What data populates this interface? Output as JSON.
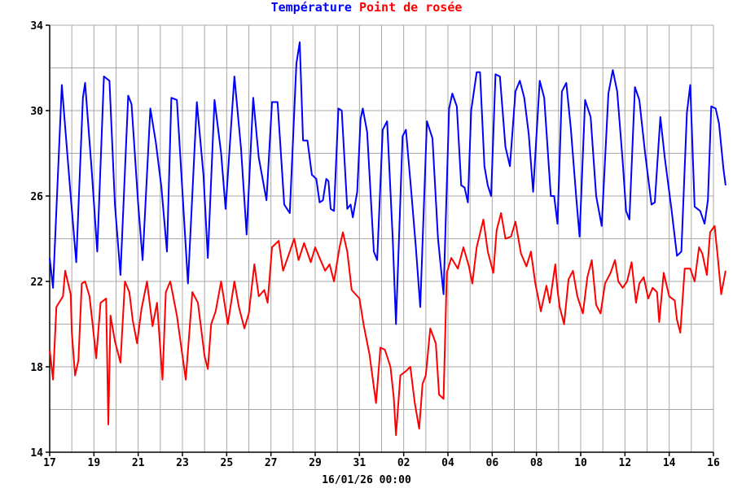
{
  "chart_data": {
    "type": "line",
    "title_parts": [
      {
        "text": "Température",
        "color": "#0000ff"
      },
      {
        "text": "Point de rosée",
        "color": "#ff0000"
      }
    ],
    "footer": "16/01/26 00:00",
    "x_tick_labels": [
      "17",
      "19",
      "21",
      "23",
      "25",
      "27",
      "29",
      "31",
      "02",
      "04",
      "06",
      "08",
      "10",
      "12",
      "14",
      "16"
    ],
    "x_range": [
      0,
      30
    ],
    "ylim": [
      14,
      34
    ],
    "y_ticks": [
      14,
      18,
      22,
      26,
      30,
      34
    ],
    "grid": true,
    "series": [
      {
        "name": "Température",
        "color": "#0000ff",
        "points": [
          [
            0,
            23.1
          ],
          [
            0.15,
            21.7
          ],
          [
            0.55,
            31.2
          ],
          [
            0.95,
            26.0
          ],
          [
            1.2,
            22.9
          ],
          [
            1.5,
            30.6
          ],
          [
            1.6,
            31.3
          ],
          [
            1.9,
            27.2
          ],
          [
            2.15,
            23.4
          ],
          [
            2.45,
            31.6
          ],
          [
            2.7,
            31.4
          ],
          [
            2.95,
            25.6
          ],
          [
            3.2,
            22.3
          ],
          [
            3.55,
            30.7
          ],
          [
            3.7,
            30.3
          ],
          [
            4.0,
            25.6
          ],
          [
            4.2,
            23.0
          ],
          [
            4.55,
            30.1
          ],
          [
            4.8,
            28.5
          ],
          [
            5.05,
            26.4
          ],
          [
            5.3,
            23.4
          ],
          [
            5.5,
            30.6
          ],
          [
            5.75,
            30.5
          ],
          [
            6.0,
            26.2
          ],
          [
            6.25,
            21.9
          ],
          [
            6.65,
            30.4
          ],
          [
            6.95,
            27.0
          ],
          [
            7.15,
            23.1
          ],
          [
            7.45,
            30.5
          ],
          [
            7.75,
            28.0
          ],
          [
            7.95,
            25.4
          ],
          [
            8.35,
            31.6
          ],
          [
            8.65,
            28.2
          ],
          [
            8.9,
            24.2
          ],
          [
            9.2,
            30.6
          ],
          [
            9.45,
            27.8
          ],
          [
            9.8,
            25.8
          ],
          [
            10.05,
            30.4
          ],
          [
            10.3,
            30.4
          ],
          [
            10.6,
            25.6
          ],
          [
            10.85,
            25.2
          ],
          [
            11.15,
            32.2
          ],
          [
            11.3,
            33.2
          ],
          [
            11.45,
            28.6
          ],
          [
            11.65,
            28.6
          ],
          [
            11.85,
            27.0
          ],
          [
            12.05,
            26.8
          ],
          [
            12.2,
            25.7
          ],
          [
            12.35,
            25.8
          ],
          [
            12.5,
            26.8
          ],
          [
            12.6,
            26.7
          ],
          [
            12.7,
            25.4
          ],
          [
            12.85,
            25.3
          ],
          [
            13.05,
            30.1
          ],
          [
            13.2,
            30.0
          ],
          [
            13.45,
            25.4
          ],
          [
            13.6,
            25.6
          ],
          [
            13.7,
            25.0
          ],
          [
            13.9,
            26.2
          ],
          [
            14.05,
            29.6
          ],
          [
            14.15,
            30.1
          ],
          [
            14.35,
            29.0
          ],
          [
            14.65,
            23.4
          ],
          [
            14.8,
            23.0
          ],
          [
            15.05,
            29.1
          ],
          [
            15.25,
            29.5
          ],
          [
            15.5,
            24.1
          ],
          [
            15.65,
            20.0
          ],
          [
            15.95,
            28.8
          ],
          [
            16.1,
            29.1
          ],
          [
            16.35,
            26.1
          ],
          [
            16.55,
            23.6
          ],
          [
            16.75,
            20.8
          ],
          [
            17.05,
            29.5
          ],
          [
            17.3,
            28.7
          ],
          [
            17.55,
            24.0
          ],
          [
            17.8,
            21.4
          ],
          [
            18.05,
            30.1
          ],
          [
            18.2,
            30.8
          ],
          [
            18.4,
            30.2
          ],
          [
            18.6,
            26.5
          ],
          [
            18.75,
            26.4
          ],
          [
            18.9,
            25.7
          ],
          [
            19.05,
            30.0
          ],
          [
            19.3,
            31.8
          ],
          [
            19.45,
            31.8
          ],
          [
            19.65,
            27.4
          ],
          [
            19.8,
            26.5
          ],
          [
            19.95,
            26.0
          ],
          [
            20.15,
            31.7
          ],
          [
            20.35,
            31.6
          ],
          [
            20.6,
            28.3
          ],
          [
            20.8,
            27.4
          ],
          [
            21.05,
            30.9
          ],
          [
            21.25,
            31.4
          ],
          [
            21.45,
            30.6
          ],
          [
            21.65,
            28.9
          ],
          [
            21.85,
            26.2
          ],
          [
            22.15,
            31.4
          ],
          [
            22.35,
            30.6
          ],
          [
            22.65,
            26.0
          ],
          [
            22.8,
            26.0
          ],
          [
            22.95,
            24.7
          ],
          [
            23.15,
            30.9
          ],
          [
            23.35,
            31.3
          ],
          [
            23.55,
            29.2
          ],
          [
            23.8,
            25.9
          ],
          [
            23.95,
            24.1
          ],
          [
            24.2,
            30.5
          ],
          [
            24.45,
            29.7
          ],
          [
            24.7,
            26.0
          ],
          [
            24.95,
            24.6
          ],
          [
            25.25,
            30.8
          ],
          [
            25.45,
            31.9
          ],
          [
            25.65,
            30.9
          ],
          [
            25.9,
            27.6
          ],
          [
            26.05,
            25.3
          ],
          [
            26.2,
            24.9
          ],
          [
            26.45,
            31.1
          ],
          [
            26.65,
            30.5
          ],
          [
            26.9,
            28.1
          ],
          [
            27.2,
            25.6
          ],
          [
            27.35,
            25.7
          ],
          [
            27.6,
            29.7
          ],
          [
            27.8,
            27.8
          ],
          [
            28.1,
            25.4
          ],
          [
            28.35,
            23.2
          ],
          [
            28.55,
            23.4
          ],
          [
            28.8,
            29.9
          ],
          [
            28.95,
            31.2
          ],
          [
            29.15,
            25.5
          ],
          [
            29.4,
            25.3
          ],
          [
            29.6,
            24.7
          ],
          [
            29.75,
            25.8
          ],
          [
            29.9,
            30.2
          ],
          [
            30.1,
            30.1
          ],
          [
            30.25,
            29.4
          ],
          [
            30.45,
            27.3
          ],
          [
            30.55,
            26.5
          ]
        ]
      },
      {
        "name": "Point de rosée",
        "color": "#ff0000",
        "points": [
          [
            0,
            18.8
          ],
          [
            0.15,
            17.4
          ],
          [
            0.3,
            20.8
          ],
          [
            0.6,
            21.3
          ],
          [
            0.7,
            22.5
          ],
          [
            0.95,
            21.4
          ],
          [
            1.0,
            19.6
          ],
          [
            1.15,
            17.6
          ],
          [
            1.3,
            18.3
          ],
          [
            1.45,
            21.9
          ],
          [
            1.6,
            22.0
          ],
          [
            1.8,
            21.3
          ],
          [
            1.95,
            19.9
          ],
          [
            2.1,
            18.4
          ],
          [
            2.3,
            21.0
          ],
          [
            2.55,
            21.2
          ],
          [
            2.65,
            15.3
          ],
          [
            2.75,
            20.4
          ],
          [
            2.95,
            19.2
          ],
          [
            3.2,
            18.2
          ],
          [
            3.4,
            22.0
          ],
          [
            3.6,
            21.5
          ],
          [
            3.75,
            20.2
          ],
          [
            3.95,
            19.1
          ],
          [
            4.15,
            20.7
          ],
          [
            4.4,
            22.0
          ],
          [
            4.65,
            19.9
          ],
          [
            4.85,
            21.0
          ],
          [
            5.1,
            17.4
          ],
          [
            5.25,
            21.5
          ],
          [
            5.45,
            22.0
          ],
          [
            5.75,
            20.4
          ],
          [
            6.15,
            17.4
          ],
          [
            6.45,
            21.5
          ],
          [
            6.7,
            21.0
          ],
          [
            7.0,
            18.5
          ],
          [
            7.15,
            17.9
          ],
          [
            7.3,
            20.0
          ],
          [
            7.5,
            20.6
          ],
          [
            7.75,
            22.0
          ],
          [
            8.05,
            20.0
          ],
          [
            8.35,
            22.0
          ],
          [
            8.55,
            20.8
          ],
          [
            8.8,
            19.8
          ],
          [
            9.0,
            20.5
          ],
          [
            9.25,
            22.8
          ],
          [
            9.45,
            21.3
          ],
          [
            9.7,
            21.6
          ],
          [
            9.85,
            21.0
          ],
          [
            10.05,
            23.6
          ],
          [
            10.35,
            23.9
          ],
          [
            10.55,
            22.5
          ],
          [
            10.85,
            23.4
          ],
          [
            11.05,
            24.0
          ],
          [
            11.25,
            23.0
          ],
          [
            11.5,
            23.8
          ],
          [
            11.8,
            22.9
          ],
          [
            12.0,
            23.6
          ],
          [
            12.2,
            23.1
          ],
          [
            12.45,
            22.5
          ],
          [
            12.65,
            22.8
          ],
          [
            12.85,
            22.0
          ],
          [
            13.1,
            23.6
          ],
          [
            13.25,
            24.3
          ],
          [
            13.45,
            23.4
          ],
          [
            13.65,
            21.6
          ],
          [
            14.0,
            21.2
          ],
          [
            14.2,
            19.9
          ],
          [
            14.45,
            18.6
          ],
          [
            14.75,
            16.3
          ],
          [
            14.95,
            18.9
          ],
          [
            15.15,
            18.8
          ],
          [
            15.4,
            18.0
          ],
          [
            15.55,
            16.6
          ],
          [
            15.65,
            14.8
          ],
          [
            15.85,
            17.6
          ],
          [
            16.1,
            17.8
          ],
          [
            16.3,
            18.0
          ],
          [
            16.5,
            16.3
          ],
          [
            16.7,
            15.1
          ],
          [
            16.85,
            17.2
          ],
          [
            17.0,
            17.6
          ],
          [
            17.2,
            19.8
          ],
          [
            17.45,
            19.1
          ],
          [
            17.6,
            16.7
          ],
          [
            17.8,
            16.5
          ],
          [
            17.95,
            22.4
          ],
          [
            18.15,
            23.1
          ],
          [
            18.45,
            22.6
          ],
          [
            18.7,
            23.6
          ],
          [
            18.95,
            22.7
          ],
          [
            19.1,
            21.9
          ],
          [
            19.3,
            23.6
          ],
          [
            19.6,
            24.9
          ],
          [
            19.8,
            23.4
          ],
          [
            20.05,
            22.4
          ],
          [
            20.2,
            24.4
          ],
          [
            20.4,
            25.2
          ],
          [
            20.6,
            24.0
          ],
          [
            20.85,
            24.1
          ],
          [
            21.05,
            24.8
          ],
          [
            21.3,
            23.3
          ],
          [
            21.55,
            22.7
          ],
          [
            21.75,
            23.4
          ],
          [
            21.95,
            21.9
          ],
          [
            22.2,
            20.6
          ],
          [
            22.45,
            21.8
          ],
          [
            22.6,
            21.0
          ],
          [
            22.85,
            22.8
          ],
          [
            22.95,
            21.6
          ],
          [
            23.05,
            20.8
          ],
          [
            23.25,
            20.0
          ],
          [
            23.45,
            22.1
          ],
          [
            23.65,
            22.5
          ],
          [
            23.85,
            21.3
          ],
          [
            24.1,
            20.5
          ],
          [
            24.3,
            22.2
          ],
          [
            24.5,
            23.0
          ],
          [
            24.7,
            20.9
          ],
          [
            24.9,
            20.5
          ],
          [
            25.1,
            21.9
          ],
          [
            25.35,
            22.4
          ],
          [
            25.55,
            23.0
          ],
          [
            25.7,
            22.0
          ],
          [
            25.9,
            21.7
          ],
          [
            26.1,
            22.0
          ],
          [
            26.3,
            22.9
          ],
          [
            26.5,
            21.0
          ],
          [
            26.65,
            21.9
          ],
          [
            26.85,
            22.2
          ],
          [
            27.05,
            21.2
          ],
          [
            27.25,
            21.7
          ],
          [
            27.45,
            21.5
          ],
          [
            27.55,
            20.1
          ],
          [
            27.75,
            22.4
          ],
          [
            28.0,
            21.3
          ],
          [
            28.25,
            21.1
          ],
          [
            28.35,
            20.2
          ],
          [
            28.5,
            19.6
          ],
          [
            28.7,
            22.6
          ],
          [
            28.95,
            22.6
          ],
          [
            29.15,
            22.0
          ],
          [
            29.35,
            23.6
          ],
          [
            29.5,
            23.3
          ],
          [
            29.7,
            22.3
          ],
          [
            29.85,
            24.3
          ],
          [
            30.05,
            24.6
          ],
          [
            30.2,
            23.1
          ],
          [
            30.35,
            21.4
          ],
          [
            30.55,
            22.5
          ]
        ]
      }
    ]
  }
}
